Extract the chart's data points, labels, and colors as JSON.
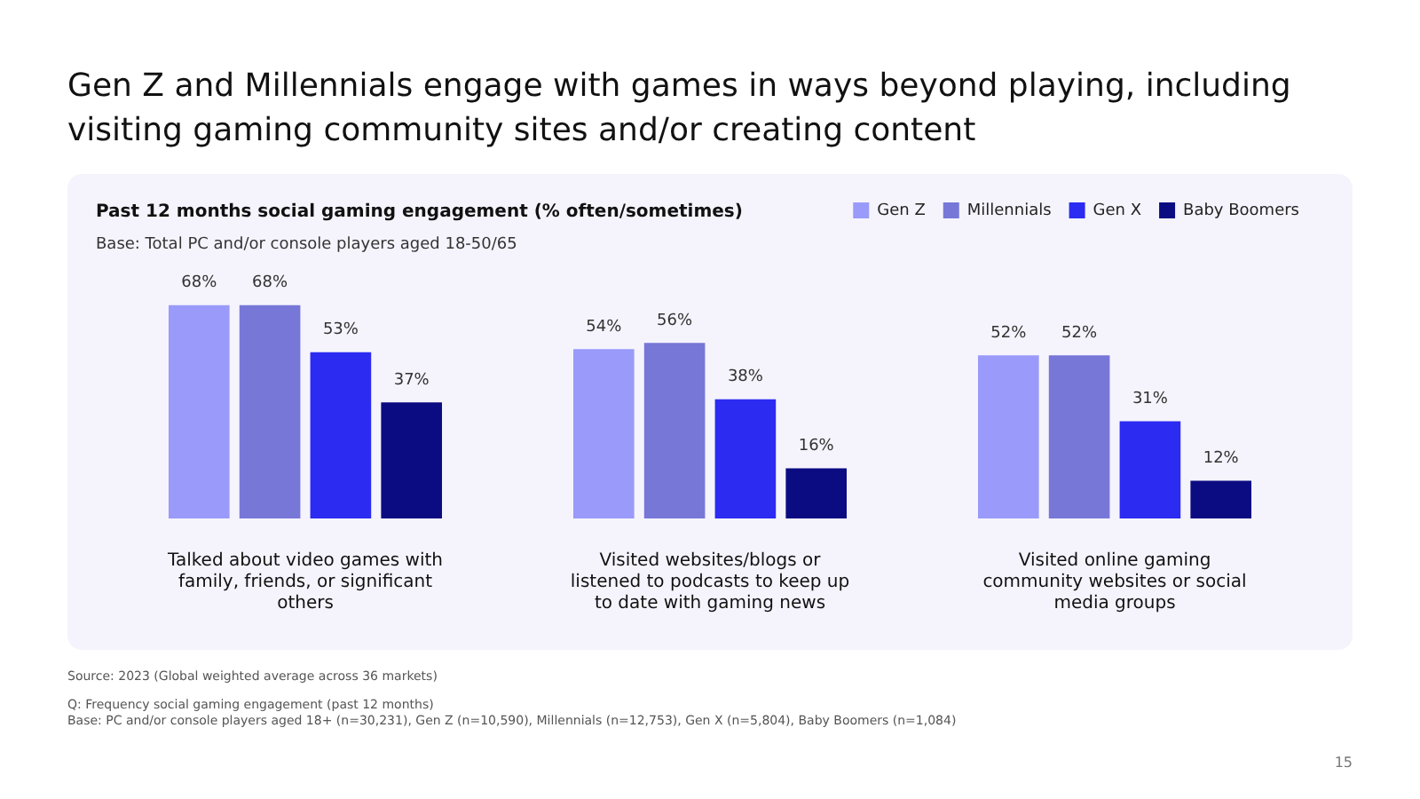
{
  "chart_data": {
    "type": "bar",
    "title": "Gen Z and Millennials engage with games in ways beyond playing, including visiting gaming community sites and/or creating content",
    "subtitle": "Past 12 months social gaming engagement (% often/sometimes)",
    "categories": [
      "Talked about video games with family, friends, or significant others",
      "Visited websites/blogs or listened to podcasts to keep up to date with gaming news",
      "Visited online gaming community websites or social media groups"
    ],
    "series": [
      {
        "name": "Gen Z",
        "color": "#9a9afa",
        "values": [
          68,
          54,
          52
        ],
        "value_labels": [
          "68%",
          "54%",
          "52%"
        ]
      },
      {
        "name": "Millennials",
        "color": "#7777d8",
        "values": [
          68,
          56,
          52
        ],
        "value_labels": [
          "68%",
          "56%",
          "52%"
        ]
      },
      {
        "name": "Gen X",
        "color": "#2b2bf2",
        "values": [
          53,
          38,
          31
        ],
        "value_labels": [
          "53%",
          "38%",
          "31%"
        ]
      },
      {
        "name": "Baby Boomers",
        "color": "#0c0c82",
        "values": [
          37,
          16,
          12
        ],
        "value_labels": [
          "37%",
          "16%",
          "12%"
        ]
      }
    ],
    "legend": "top right",
    "tick_labels": "x",
    "annotations": [
      "Base: Total PC and/or console players aged 18-50/65",
      "Source: 2023 (Global weighted average across 36 markets)",
      "Q: Frequency social gaming engagement (past 12 months)",
      "Base: PC and/or console players aged 18+ (n=30,231), Gen Z (n=10,590), Millennials (n=12,753), Gen X (n=5,804), Baby Boomers (n=1,084)",
      "15"
    ]
  }
}
